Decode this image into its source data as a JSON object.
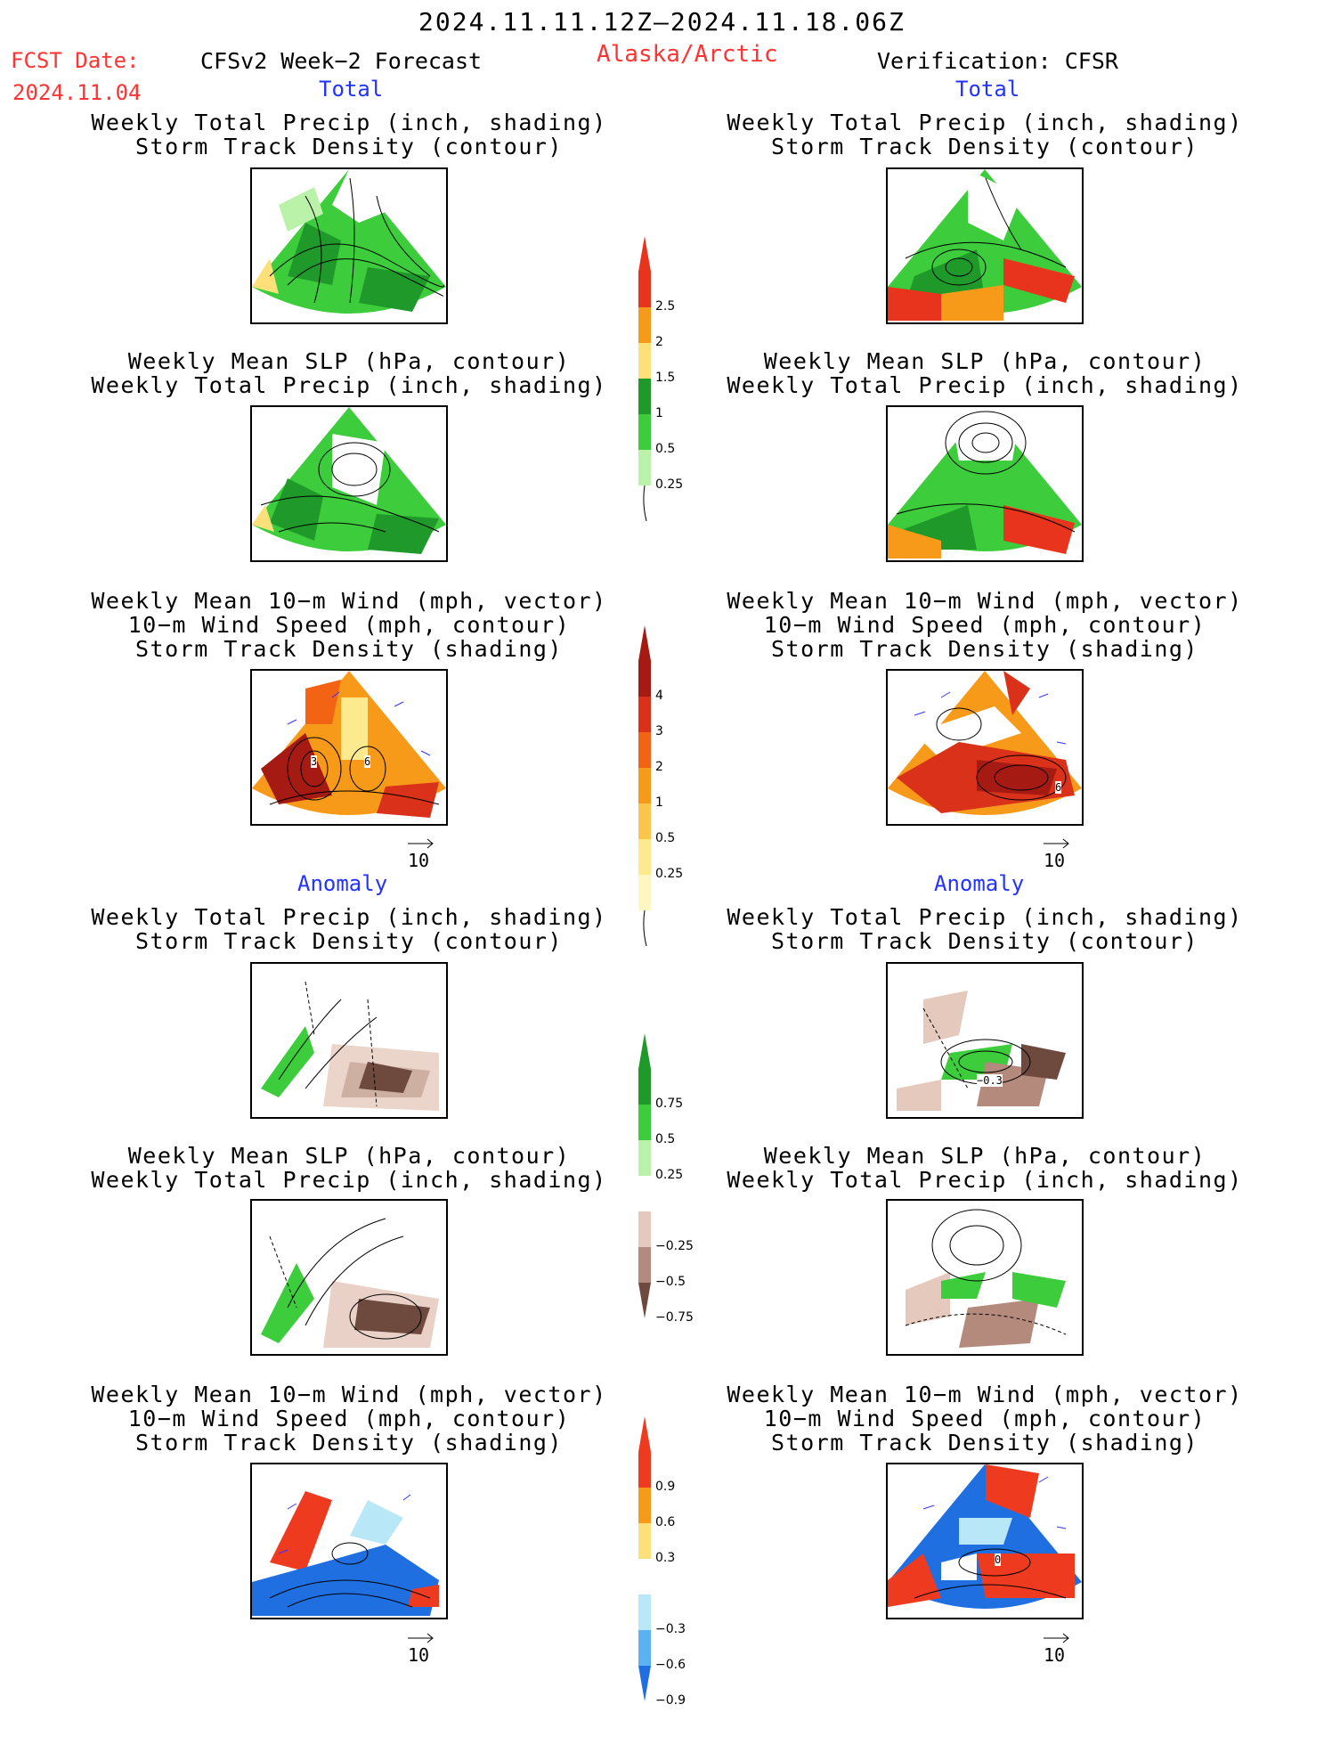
{
  "header": {
    "date_range": "2024.11.11.12Z—2024.11.18.06Z",
    "fcst_label": "FCST Date:",
    "fcst_date": "2024.11.04",
    "model": "CFSv2 Week−2 Forecast",
    "region": "Alaska/Arctic",
    "verification": "Verification: CFSR"
  },
  "sections": {
    "total": "Total",
    "anomaly": "Anomaly"
  },
  "panel_titles": {
    "precip_storm": [
      "Weekly Total Precip (inch, shading)",
      "Storm Track Density (contour)"
    ],
    "slp_precip": [
      "Weekly Mean SLP (hPa, contour)",
      "Weekly Total Precip (inch, shading)"
    ],
    "wind_storm": [
      "Weekly Mean 10−m Wind (mph, vector)",
      "10−m Wind Speed (mph, contour)",
      "Storm Track Density (shading)"
    ]
  },
  "vector_ref": "10",
  "contour_labels": {
    "total_wind_left_a": "3",
    "total_wind_left_b": "6",
    "total_wind_right": "6",
    "anom_precip_right": "−0.3",
    "anom_wind_right": "0"
  },
  "colorbars": {
    "precip_total": {
      "labels": [
        "2.5",
        "2",
        "1.5",
        "1",
        "0.5",
        "0.25"
      ],
      "colors": [
        "#e8341c",
        "#f79a1a",
        "#fde07a",
        "#1f9a2a",
        "#3ccc3c",
        "#b9f2a8"
      ]
    },
    "storm_total": {
      "labels": [
        "4",
        "3",
        "2",
        "1",
        "0.5",
        "0.25"
      ],
      "colors": [
        "#a51a12",
        "#d9311a",
        "#f26413",
        "#f79a1a",
        "#fbc44a",
        "#fde98e",
        "#fff6c2"
      ]
    },
    "precip_anom": {
      "labels": [
        "0.75",
        "0.5",
        "0.25",
        "−0.25",
        "−0.5",
        "−0.75"
      ],
      "colors": [
        "#1f9a2a",
        "#3ccc3c",
        "#b9f2a8",
        "#ffffff",
        "#e6c9bd",
        "#b38a7c",
        "#6e4a3e"
      ]
    },
    "storm_anom": {
      "labels": [
        "0.9",
        "0.6",
        "0.3",
        "−0.3",
        "−0.6",
        "−0.9"
      ],
      "colors": [
        "#ee3b20",
        "#f79a1a",
        "#fde07a",
        "#ffffff",
        "#b8e8f8",
        "#5ab3f0",
        "#1f6fe0"
      ]
    }
  }
}
